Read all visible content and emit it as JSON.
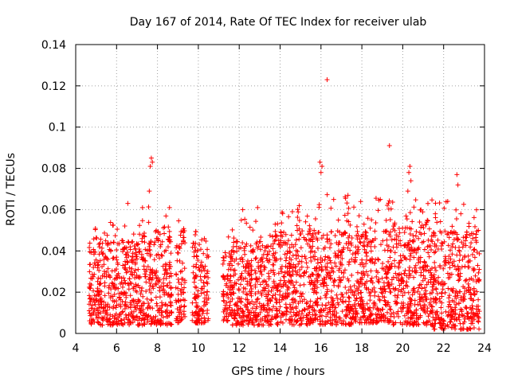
{
  "chart_data": {
    "type": "scatter",
    "title": "Day 167 of 2014, Rate Of TEC Index for receiver ulab",
    "xlabel": "GPS time / hours",
    "ylabel": "ROTI / TECUs",
    "xlim": [
      4,
      24
    ],
    "ylim": [
      0,
      0.14
    ],
    "xticks": [
      "4",
      "6",
      "8",
      "10",
      "12",
      "14",
      "16",
      "18",
      "20",
      "22",
      "24"
    ],
    "yticks": [
      "0",
      "0.02",
      "0.04",
      "0.06",
      "0.08",
      "0.1",
      "0.12",
      "0.14"
    ],
    "grid": true,
    "marker": "+",
    "marker_color": "#ff0000",
    "series": [
      {
        "name": "ROTI",
        "notable_points": [
          {
            "x": 6.55,
            "y": 0.063
          },
          {
            "x": 7.7,
            "y": 0.085
          },
          {
            "x": 7.75,
            "y": 0.083
          },
          {
            "x": 7.65,
            "y": 0.081
          },
          {
            "x": 7.6,
            "y": 0.069
          },
          {
            "x": 12.9,
            "y": 0.061
          },
          {
            "x": 14.6,
            "y": 0.059
          },
          {
            "x": 15.95,
            "y": 0.083
          },
          {
            "x": 16.05,
            "y": 0.081
          },
          {
            "x": 16.0,
            "y": 0.078
          },
          {
            "x": 16.3,
            "y": 0.123
          },
          {
            "x": 19.35,
            "y": 0.091
          },
          {
            "x": 20.35,
            "y": 0.081
          },
          {
            "x": 20.3,
            "y": 0.078
          },
          {
            "x": 20.4,
            "y": 0.074
          },
          {
            "x": 20.25,
            "y": 0.069
          },
          {
            "x": 22.65,
            "y": 0.077
          },
          {
            "x": 22.7,
            "y": 0.072
          },
          {
            "x": 22.2,
            "y": 0.064
          }
        ],
        "coverage_blocks": [
          {
            "x_start": 4.65,
            "x_end": 7.2,
            "y_min": 0.004,
            "y_typical_max": 0.045,
            "y_max": 0.054
          },
          {
            "x_start": 7.2,
            "y_max": 0.062,
            "x_end": 8.7,
            "y_min": 0.004,
            "y_typical_max": 0.05
          },
          {
            "x_start": 8.9,
            "x_end": 9.35,
            "y_min": 0.005,
            "y_typical_max": 0.05,
            "y_max": 0.057
          },
          {
            "x_start": 9.7,
            "x_end": 10.5,
            "y_min": 0.005,
            "y_typical_max": 0.045,
            "y_max": 0.05
          },
          {
            "x_start": 11.2,
            "x_end": 11.6,
            "y_min": 0.006,
            "y_typical_max": 0.04,
            "y_max": 0.049
          },
          {
            "x_start": 11.6,
            "x_end": 13.6,
            "y_min": 0.004,
            "y_typical_max": 0.045,
            "y_max": 0.061
          },
          {
            "x_start": 13.6,
            "x_end": 15.6,
            "y_min": 0.004,
            "y_typical_max": 0.05,
            "y_max": 0.062
          },
          {
            "x_start": 15.6,
            "x_end": 17.5,
            "y_min": 0.004,
            "y_typical_max": 0.05,
            "y_max": 0.068
          },
          {
            "x_start": 17.5,
            "x_end": 19.5,
            "y_min": 0.005,
            "y_typical_max": 0.05,
            "y_max": 0.066
          },
          {
            "x_start": 19.5,
            "x_end": 21.5,
            "y_min": 0.004,
            "y_typical_max": 0.055,
            "y_max": 0.065
          },
          {
            "x_start": 21.5,
            "x_end": 23.75,
            "y_min": 0.002,
            "y_typical_max": 0.05,
            "y_max": 0.064
          }
        ]
      }
    ]
  }
}
